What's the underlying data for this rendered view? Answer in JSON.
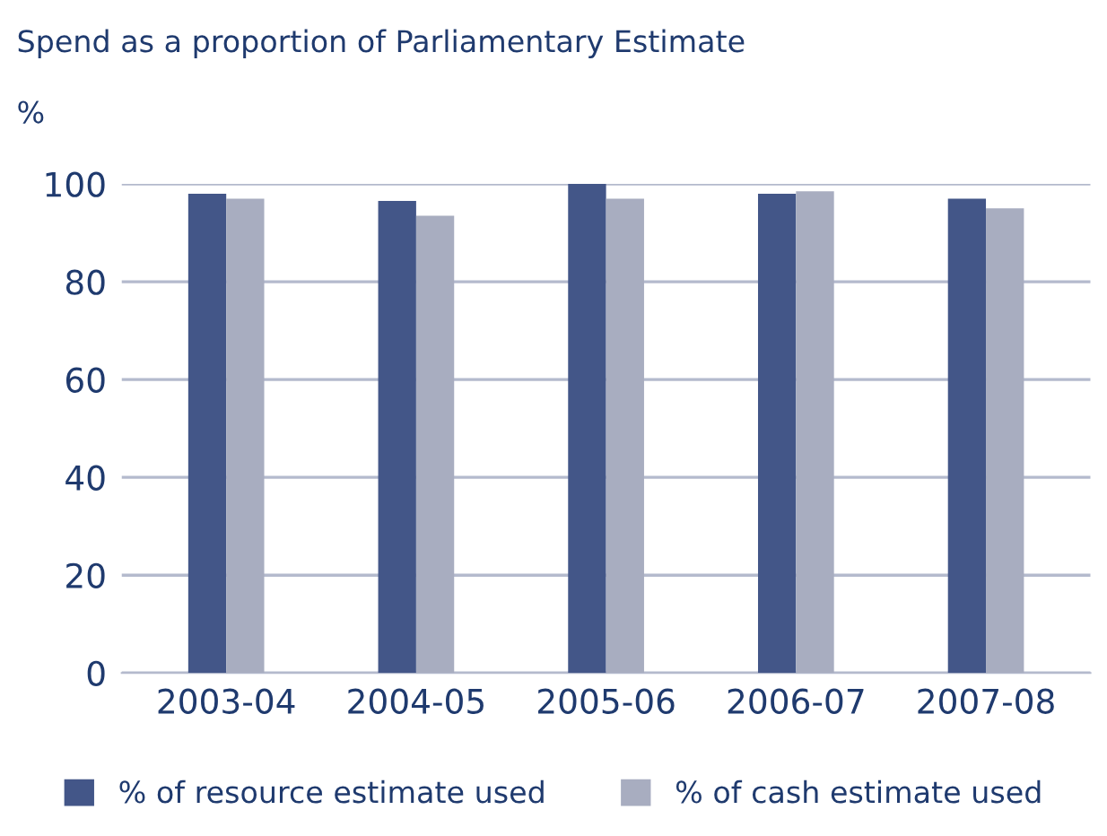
{
  "chart_data": {
    "type": "bar",
    "title": "Spend as a proportion of Parliamentary Estimate",
    "ylabel": "%",
    "categories": [
      "2003-04",
      "2004-05",
      "2005-06",
      "2006-07",
      "2007-08"
    ],
    "series": [
      {
        "name": "% of resource estimate used",
        "color": "#435688",
        "values": [
          98,
          96.5,
          100,
          98,
          97
        ]
      },
      {
        "name": "% of cash estimate used",
        "color": "#a8adc0",
        "values": [
          97,
          93.5,
          97,
          98.5,
          95
        ]
      }
    ],
    "ylim": [
      0,
      100
    ],
    "yticks": [
      0,
      20,
      40,
      60,
      80,
      100
    ],
    "grid": "y",
    "legend": "bottom"
  }
}
